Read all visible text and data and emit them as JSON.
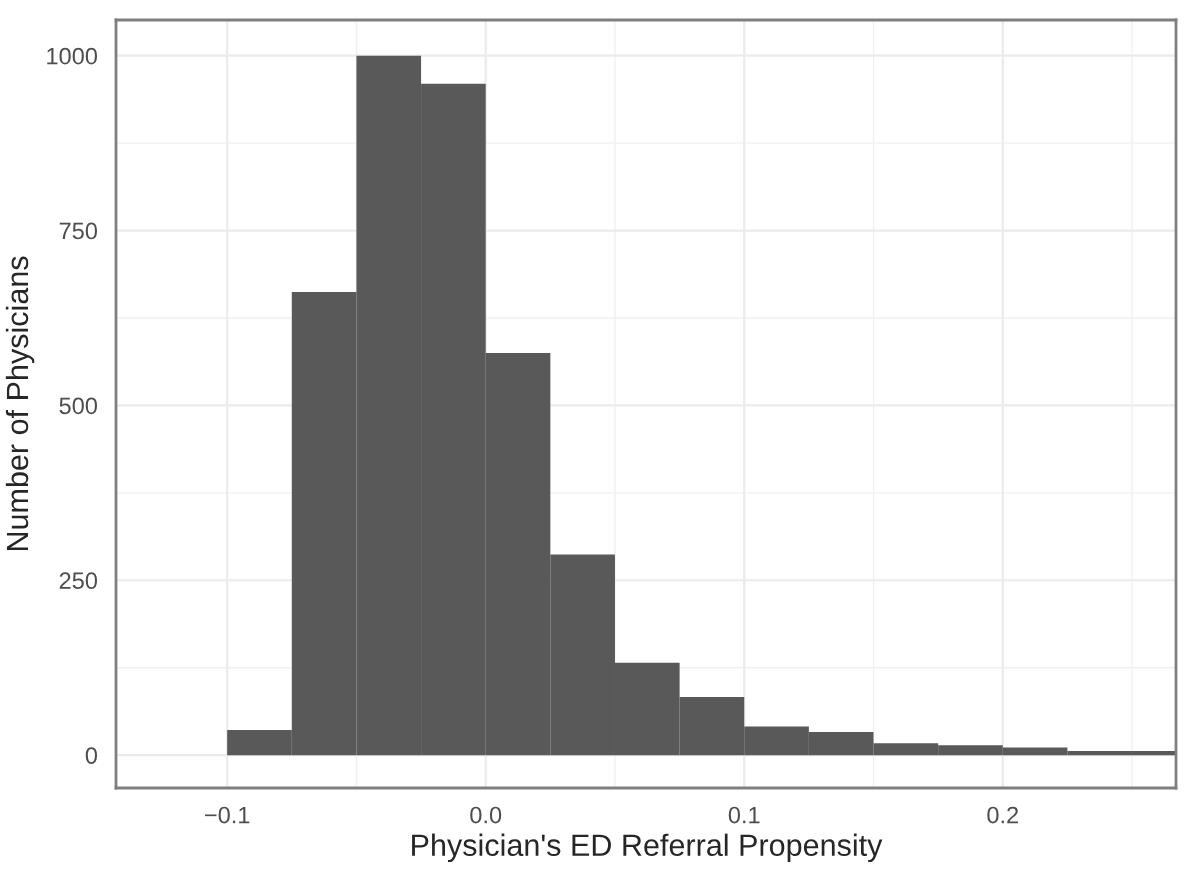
{
  "chart_data": {
    "type": "histogram",
    "xlabel": "Physician's ED Referral Propensity",
    "ylabel": "Number of Physicians",
    "bins": [
      -0.1,
      -0.075,
      -0.05,
      -0.025,
      0.0,
      0.025,
      0.05,
      0.075,
      0.1,
      0.125,
      0.15,
      0.175,
      0.2,
      0.225,
      0.25,
      0.275
    ],
    "values": [
      36,
      662,
      1000,
      960,
      575,
      287,
      132,
      83,
      41,
      33,
      17,
      14,
      11,
      6,
      6
    ],
    "color": "#595959",
    "xlim": [
      -0.143,
      0.267
    ],
    "ylim": [
      -47,
      1051
    ],
    "xticks": [
      {
        "value": -0.1,
        "label": "−0.1"
      },
      {
        "value": 0.0,
        "label": "0.0"
      },
      {
        "value": 0.1,
        "label": "0.1"
      },
      {
        "value": 0.2,
        "label": "0.2"
      }
    ],
    "yticks": [
      0,
      250,
      500,
      750,
      1000
    ],
    "grid": true
  }
}
